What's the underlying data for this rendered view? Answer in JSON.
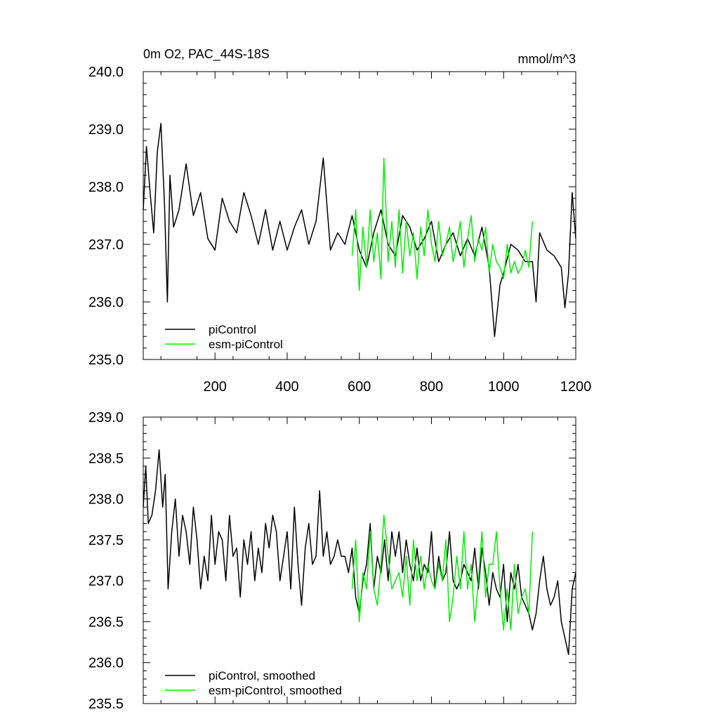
{
  "chart_data": [
    {
      "type": "line",
      "title": "0m O2, PAC_44S-18S",
      "units": "mmol/m^3",
      "xlim": [
        1,
        1200
      ],
      "ylim": [
        235.0,
        240.0
      ],
      "x_ticks": [
        200,
        400,
        600,
        800,
        1000,
        1200
      ],
      "y_ticks": [
        235.0,
        236.0,
        237.0,
        238.0,
        239.0,
        240.0
      ],
      "y_tick_labels": [
        "235.0",
        "236.0",
        "237.0",
        "238.0",
        "239.0",
        "240.0"
      ],
      "legend_position": "bottom-left",
      "series": [
        {
          "name": "piControl",
          "color": "#000000",
          "x": [
            1,
            10,
            20,
            30,
            40,
            50,
            60,
            68,
            75,
            85,
            100,
            120,
            140,
            160,
            180,
            200,
            220,
            240,
            260,
            280,
            300,
            320,
            340,
            360,
            380,
            400,
            420,
            440,
            460,
            480,
            500,
            520,
            540,
            560,
            580,
            600,
            620,
            640,
            660,
            680,
            700,
            720,
            740,
            760,
            780,
            800,
            820,
            840,
            860,
            880,
            900,
            920,
            940,
            960,
            975,
            990,
            1000,
            1020,
            1040,
            1060,
            1080,
            1090,
            1100,
            1120,
            1140,
            1160,
            1170,
            1180,
            1190,
            1200
          ],
          "y": [
            237.6,
            238.7,
            237.9,
            237.2,
            238.6,
            239.1,
            237.7,
            236.0,
            238.2,
            237.3,
            237.6,
            238.4,
            237.5,
            237.9,
            237.1,
            236.9,
            237.8,
            237.4,
            237.2,
            237.9,
            237.5,
            237.0,
            237.6,
            236.9,
            237.4,
            236.9,
            237.3,
            237.6,
            237.0,
            237.4,
            238.5,
            236.9,
            237.2,
            237.0,
            237.5,
            236.9,
            236.6,
            237.2,
            237.6,
            237.0,
            236.8,
            237.5,
            237.3,
            236.9,
            237.1,
            237.4,
            236.7,
            237.0,
            237.2,
            236.8,
            237.1,
            236.8,
            237.3,
            236.6,
            235.4,
            236.3,
            236.5,
            237.0,
            236.9,
            236.7,
            236.7,
            236.0,
            237.2,
            236.9,
            236.8,
            236.6,
            235.9,
            236.5,
            237.9,
            237.1
          ]
        },
        {
          "name": "esm-piControl",
          "color": "#00ee00",
          "x": [
            580,
            590,
            600,
            610,
            620,
            630,
            640,
            650,
            660,
            668,
            680,
            690,
            700,
            710,
            720,
            730,
            740,
            750,
            760,
            770,
            780,
            790,
            800,
            810,
            820,
            830,
            840,
            850,
            860,
            870,
            880,
            890,
            900,
            910,
            920,
            930,
            940,
            950,
            960,
            970,
            980,
            990,
            1000,
            1010,
            1020,
            1030,
            1040,
            1050,
            1060,
            1070,
            1080
          ],
          "y": [
            236.8,
            237.6,
            236.2,
            237.3,
            236.6,
            237.6,
            236.7,
            237.2,
            236.4,
            238.5,
            236.7,
            237.4,
            236.6,
            237.6,
            236.5,
            237.4,
            236.8,
            237.2,
            236.4,
            237.3,
            236.8,
            237.6,
            237.0,
            236.7,
            237.4,
            236.8,
            237.0,
            237.3,
            236.7,
            237.0,
            237.4,
            236.6,
            237.1,
            237.5,
            236.7,
            237.1,
            236.9,
            237.3,
            236.5,
            237.0,
            236.7,
            236.6,
            236.4,
            237.0,
            236.5,
            236.7,
            236.5,
            236.6,
            236.9,
            236.6,
            237.4
          ]
        }
      ]
    },
    {
      "type": "line",
      "xlim": [
        1,
        1200
      ],
      "ylim": [
        235.5,
        239.0
      ],
      "x_ticks": [
        200,
        400,
        600,
        800,
        1000,
        1200
      ],
      "y_ticks": [
        235.5,
        236.0,
        236.5,
        237.0,
        237.5,
        238.0,
        238.5,
        239.0
      ],
      "y_tick_labels": [
        "235.5",
        "236.0",
        "236.5",
        "237.0",
        "237.5",
        "238.0",
        "238.5",
        "239.0"
      ],
      "legend_position": "bottom-left",
      "series": [
        {
          "name": "piControl, smoothed",
          "color": "#000000",
          "x": [
            1,
            8,
            15,
            25,
            35,
            45,
            55,
            62,
            70,
            80,
            90,
            100,
            110,
            120,
            130,
            140,
            150,
            160,
            170,
            180,
            190,
            200,
            210,
            220,
            230,
            240,
            250,
            260,
            270,
            280,
            290,
            300,
            310,
            320,
            330,
            340,
            350,
            360,
            370,
            380,
            390,
            400,
            410,
            420,
            430,
            440,
            450,
            460,
            470,
            480,
            490,
            500,
            510,
            520,
            530,
            540,
            550,
            560,
            570,
            580,
            590,
            600,
            610,
            620,
            630,
            640,
            650,
            660,
            670,
            680,
            690,
            700,
            710,
            720,
            730,
            740,
            750,
            760,
            770,
            780,
            790,
            800,
            810,
            820,
            830,
            840,
            850,
            860,
            870,
            880,
            890,
            900,
            910,
            920,
            930,
            940,
            950,
            960,
            970,
            980,
            990,
            1000,
            1010,
            1020,
            1030,
            1040,
            1050,
            1060,
            1070,
            1080,
            1090,
            1100,
            1110,
            1120,
            1130,
            1140,
            1150,
            1160,
            1170,
            1180,
            1190,
            1200
          ],
          "y": [
            237.9,
            238.4,
            237.7,
            237.8,
            238.1,
            238.6,
            237.9,
            238.3,
            236.9,
            237.6,
            238.0,
            237.3,
            237.8,
            237.6,
            237.2,
            237.9,
            237.5,
            236.9,
            237.3,
            237.0,
            237.8,
            237.2,
            237.6,
            237.5,
            237.0,
            237.8,
            237.3,
            237.4,
            236.8,
            237.5,
            237.2,
            237.6,
            237.0,
            237.4,
            237.1,
            237.7,
            237.4,
            237.8,
            237.6,
            237.0,
            237.3,
            237.6,
            236.9,
            237.9,
            237.2,
            236.7,
            237.4,
            237.7,
            237.2,
            237.3,
            238.1,
            237.3,
            237.6,
            237.2,
            237.3,
            237.5,
            237.3,
            237.3,
            237.1,
            237.4,
            236.8,
            236.6,
            237.0,
            237.2,
            237.7,
            236.9,
            237.3,
            237.1,
            237.5,
            237.0,
            237.6,
            237.3,
            237.6,
            237.1,
            237.5,
            237.2,
            237.0,
            237.4,
            237.0,
            237.2,
            237.1,
            237.6,
            236.9,
            237.3,
            237.0,
            237.1,
            237.6,
            237.0,
            236.9,
            237.0,
            237.2,
            237.1,
            237.0,
            237.4,
            236.9,
            237.4,
            237.1,
            236.7,
            237.1,
            236.9,
            236.8,
            237.2,
            236.5,
            237.1,
            236.9,
            237.2,
            236.8,
            236.7,
            236.6,
            236.4,
            236.6,
            237.0,
            237.3,
            236.9,
            236.7,
            236.8,
            237.0,
            236.5,
            236.3,
            236.1,
            236.9,
            237.1
          ]
        },
        {
          "name": "esm-piControl, smoothed",
          "color": "#00ee00",
          "x": [
            580,
            590,
            600,
            610,
            620,
            630,
            640,
            650,
            660,
            668,
            680,
            690,
            700,
            710,
            720,
            730,
            740,
            750,
            760,
            770,
            780,
            790,
            800,
            810,
            820,
            830,
            840,
            850,
            860,
            870,
            880,
            890,
            900,
            910,
            920,
            930,
            940,
            950,
            960,
            970,
            980,
            990,
            1000,
            1010,
            1020,
            1030,
            1040,
            1050,
            1060,
            1070,
            1080
          ],
          "y": [
            236.9,
            237.5,
            236.5,
            237.1,
            236.9,
            237.6,
            236.9,
            236.7,
            237.2,
            237.8,
            237.3,
            236.9,
            237.0,
            237.1,
            236.8,
            237.3,
            236.7,
            237.5,
            237.0,
            237.3,
            236.9,
            237.2,
            237.0,
            236.9,
            237.2,
            237.0,
            237.5,
            236.5,
            236.8,
            237.3,
            236.9,
            237.6,
            236.9,
            237.2,
            236.5,
            237.0,
            237.6,
            236.8,
            237.2,
            237.2,
            237.6,
            236.9,
            236.4,
            236.9,
            236.4,
            237.2,
            236.6,
            236.8,
            236.9,
            236.6,
            237.6
          ]
        }
      ]
    }
  ]
}
